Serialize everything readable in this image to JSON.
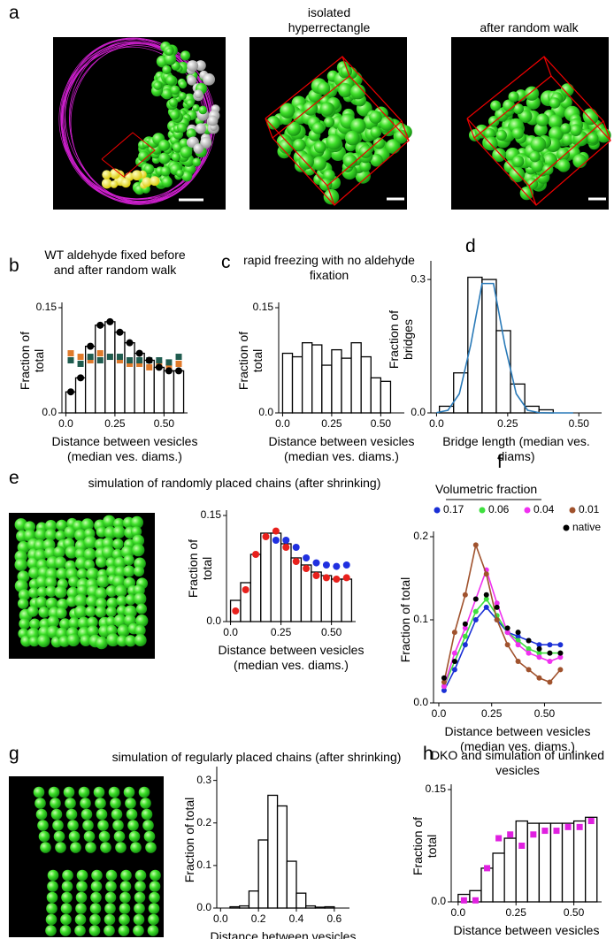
{
  "panel_a": {
    "label": "a",
    "captions": [
      "isolated hyperrectangle",
      "after random walk"
    ]
  },
  "chart_data": [
    {
      "panel": "b",
      "type": "histogram",
      "title": "WT aldehyde fixed before and after random walk",
      "x_label": "Distance between vesicles (median ves. diams.)",
      "y_label": "Fraction of total",
      "bins": [
        0,
        0.05,
        0.1,
        0.15,
        0.2,
        0.25,
        0.3,
        0.35,
        0.4,
        0.45,
        0.5,
        0.55,
        0.6
      ],
      "values": [
        0.03,
        0.05,
        0.095,
        0.125,
        0.13,
        0.115,
        0.1,
        0.085,
        0.075,
        0.065,
        0.06,
        0.06
      ],
      "color": "#ffffff",
      "x": [
        0.025,
        0.075,
        0.125,
        0.175,
        0.225,
        0.275,
        0.325,
        0.375,
        0.425,
        0.475,
        0.525,
        0.575
      ],
      "series": [
        {
          "color": "#e07a2a",
          "marker": "square",
          "values": [
            0.085,
            0.08,
            0.075,
            0.085,
            0.08,
            0.075,
            0.07,
            0.07,
            0.065,
            0.07,
            0.065,
            0.07
          ]
        },
        {
          "color": "#1f5c4f",
          "marker": "square",
          "values": [
            0.075,
            0.07,
            0.08,
            0.075,
            0.08,
            0.08,
            0.075,
            0.075,
            0.075,
            0.075,
            0.072,
            0.08
          ]
        },
        {
          "color": "#000000",
          "marker": "circle",
          "values": [
            0.03,
            0.05,
            0.095,
            0.125,
            0.13,
            0.115,
            0.1,
            0.085,
            0.075,
            0.065,
            0.06,
            0.06
          ]
        }
      ],
      "xlim": [
        -0.02,
        0.62
      ],
      "ylim": [
        0,
        0.15
      ],
      "xticks": [
        {
          "value": 0,
          "label": "0.0"
        },
        0.25,
        {
          "value": 0.5,
          "label": "0.50"
        }
      ],
      "yticks": [
        {
          "value": 0,
          "label": "0.0"
        },
        0.15
      ]
    },
    {
      "panel": "c",
      "type": "histogram",
      "title": "rapid freezing with no aldehyde fixation",
      "x_label": "Distance between vesicles (median ves. diams.)",
      "y_label": "Fraction of total",
      "bins": [
        0,
        0.05,
        0.1,
        0.15,
        0.2,
        0.25,
        0.3,
        0.35,
        0.4,
        0.45,
        0.5,
        0.55
      ],
      "values": [
        0.085,
        0.08,
        0.1,
        0.097,
        0.068,
        0.09,
        0.078,
        0.1,
        0.08,
        0.05,
        0.045
      ],
      "color": "#ffffff",
      "xlim": [
        -0.02,
        0.62
      ],
      "ylim": [
        0,
        0.15
      ],
      "xticks": [
        {
          "value": 0,
          "label": "0.0"
        },
        0.25,
        {
          "value": 0.5,
          "label": "0.50"
        }
      ],
      "yticks": [
        {
          "value": 0,
          "label": "0.0"
        },
        0.15
      ]
    },
    {
      "panel": "d",
      "type": "histogram",
      "x_label": "Bridge length (median ves. diams)",
      "y_label": "Fraction of bridges",
      "bins": [
        0.01,
        0.06,
        0.11,
        0.16,
        0.21,
        0.26,
        0.31,
        0.36,
        0.41
      ],
      "values": [
        0.015,
        0.09,
        0.305,
        0.3,
        0.185,
        0.065,
        0.015,
        0.007
      ],
      "color": "#ffffff",
      "series": [
        {
          "color": "#2a7ab8",
          "line": true,
          "x": [
            0,
            0.04,
            0.08,
            0.12,
            0.16,
            0.2,
            0.24,
            0.28,
            0.32,
            0.36,
            0.4,
            0.44,
            0.48
          ],
          "values": [
            0.0005,
            0.006,
            0.043,
            0.153,
            0.291,
            0.291,
            0.153,
            0.043,
            0.006,
            0.0005,
            0,
            0,
            0
          ]
        }
      ],
      "xlim": [
        -0.02,
        0.58
      ],
      "ylim": [
        0,
        0.33
      ],
      "xticks": [
        {
          "value": 0,
          "label": "0.0"
        },
        0.25,
        {
          "value": 0.5,
          "label": "0.50"
        }
      ],
      "yticks": [
        {
          "value": 0,
          "label": "0.0"
        },
        0.3
      ]
    },
    {
      "panel": "e",
      "type": "histogram",
      "title": "simulation of randomly placed chains (after shrinking)",
      "x_label": "Distance between vesicles (median ves. diams.)",
      "y_label": "Fraction of total",
      "bins": [
        0,
        0.05,
        0.1,
        0.15,
        0.2,
        0.25,
        0.3,
        0.35,
        0.4,
        0.45,
        0.5,
        0.55,
        0.6
      ],
      "values": [
        0.03,
        0.055,
        0.095,
        0.125,
        0.125,
        0.11,
        0.09,
        0.08,
        0.07,
        0.065,
        0.06,
        0.06
      ],
      "color": "#ffffff",
      "x": [
        0.025,
        0.075,
        0.125,
        0.175,
        0.225,
        0.275,
        0.325,
        0.375,
        0.425,
        0.475,
        0.525,
        0.575
      ],
      "series": [
        {
          "color": "#2030e0",
          "marker": "circle",
          "values": [
            null,
            null,
            null,
            null,
            0.115,
            0.115,
            0.105,
            0.09,
            0.083,
            0.08,
            0.078,
            0.08
          ]
        },
        {
          "color": "#e8201c",
          "marker": "circle",
          "values": [
            0.015,
            0.045,
            0.095,
            0.12,
            0.128,
            0.105,
            0.085,
            0.075,
            0.065,
            0.062,
            0.06,
            0.062
          ]
        }
      ],
      "xlim": [
        -0.02,
        0.62
      ],
      "ylim": [
        0,
        0.15
      ],
      "xticks": [
        {
          "value": 0,
          "label": "0.0"
        },
        0.25,
        {
          "value": 0.5,
          "label": "0.50"
        }
      ],
      "yticks": [
        {
          "value": 0,
          "label": "0.0"
        },
        0.15
      ]
    },
    {
      "panel": "f",
      "type": "line",
      "legend_title": "Volumetric fraction",
      "x_label": "Distance between vesicles (median ves. diams.)",
      "y_label": "Fraction of total",
      "x": [
        0.025,
        0.075,
        0.125,
        0.175,
        0.225,
        0.275,
        0.325,
        0.375,
        0.425,
        0.475,
        0.525,
        0.575
      ],
      "series": [
        {
          "name": "0.17",
          "color": "#1a2fd6",
          "marker": "circle",
          "line": true,
          "values": [
            0.015,
            0.04,
            0.07,
            0.1,
            0.115,
            0.1,
            0.085,
            0.08,
            0.075,
            0.07,
            0.07,
            0.07
          ]
        },
        {
          "name": "0.06",
          "color": "#3ee03e",
          "marker": "circle",
          "line": true,
          "values": [
            0.02,
            0.05,
            0.08,
            0.11,
            0.125,
            0.105,
            0.085,
            0.075,
            0.065,
            0.06,
            0.06,
            0.06
          ]
        },
        {
          "name": "0.04",
          "color": "#f030f0",
          "marker": "circle",
          "line": true,
          "values": [
            0.02,
            0.06,
            0.09,
            0.125,
            0.16,
            0.12,
            0.085,
            0.07,
            0.06,
            0.055,
            0.05,
            0.055
          ]
        },
        {
          "name": "0.01",
          "color": "#a0522d",
          "marker": "circle",
          "line": true,
          "values": [
            0.025,
            0.085,
            0.13,
            0.19,
            0.155,
            0.1,
            0.07,
            0.05,
            0.04,
            0.03,
            0.025,
            0.04
          ]
        },
        {
          "name": "native",
          "color": "#000000",
          "marker": "circle",
          "values": [
            0.03,
            0.05,
            0.095,
            0.125,
            0.13,
            0.115,
            0.09,
            0.085,
            0.075,
            0.065,
            0.06,
            0.06
          ]
        }
      ],
      "xlim": [
        -0.025,
        0.77
      ],
      "ylim": [
        0,
        0.2
      ],
      "xticks": [
        {
          "value": 0,
          "label": "0.0"
        },
        0.25,
        {
          "value": 0.5,
          "label": "0.50"
        }
      ],
      "yticks": [
        {
          "value": 0,
          "label": "0.0"
        },
        0.1,
        0.2
      ]
    },
    {
      "panel": "g",
      "type": "histogram",
      "title": "simulation of regularly placed chains (after shrinking)",
      "x_label": "Distance between vesicles (median ves. diams.)",
      "y_label": "Fraction of total",
      "bins": [
        0.05,
        0.1,
        0.15,
        0.2,
        0.25,
        0.3,
        0.35,
        0.4,
        0.45,
        0.5,
        0.55,
        0.6
      ],
      "values": [
        0.003,
        0.005,
        0.04,
        0.16,
        0.265,
        0.24,
        0.11,
        0.035,
        0.005,
        0.002,
        0.003
      ],
      "color": "#ffffff",
      "xlim": [
        -0.02,
        0.68
      ],
      "ylim": [
        0,
        0.32
      ],
      "xticks": [
        {
          "value": 0,
          "label": "0.0"
        },
        0.2,
        0.4,
        0.6
      ],
      "yticks": [
        {
          "value": 0,
          "label": "0.0"
        },
        0.1,
        0.2,
        0.3
      ]
    },
    {
      "panel": "h",
      "type": "histogram",
      "title": "DKO  and simulation of unlinked vesicles",
      "x_label": "Distance between vesicles (median ves. diams.)",
      "y_label": "Fraction of total",
      "bins": [
        0,
        0.05,
        0.1,
        0.15,
        0.2,
        0.25,
        0.3,
        0.35,
        0.4,
        0.45,
        0.5,
        0.55,
        0.6
      ],
      "values": [
        0.01,
        0.015,
        0.045,
        0.065,
        0.085,
        0.108,
        0.105,
        0.105,
        0.105,
        0.105,
        0.108,
        0.113
      ],
      "color": "#ffffff",
      "x": [
        0.025,
        0.075,
        0.125,
        0.175,
        0.225,
        0.275,
        0.325,
        0.375,
        0.425,
        0.475,
        0.525,
        0.575
      ],
      "series": [
        {
          "color": "#e020e0",
          "marker": "square",
          "values": [
            0.002,
            0.002,
            0.045,
            0.085,
            0.09,
            0.075,
            0.09,
            0.095,
            0.095,
            0.1,
            0.1,
            0.108
          ]
        }
      ],
      "xlim": [
        -0.03,
        0.62
      ],
      "ylim": [
        0,
        0.15
      ],
      "xticks": [
        {
          "value": 0,
          "label": "0.0"
        },
        0.25,
        {
          "value": 0.5,
          "label": "0.50"
        }
      ],
      "yticks": [
        {
          "value": 0,
          "label": "0.0"
        },
        0.15
      ]
    }
  ]
}
